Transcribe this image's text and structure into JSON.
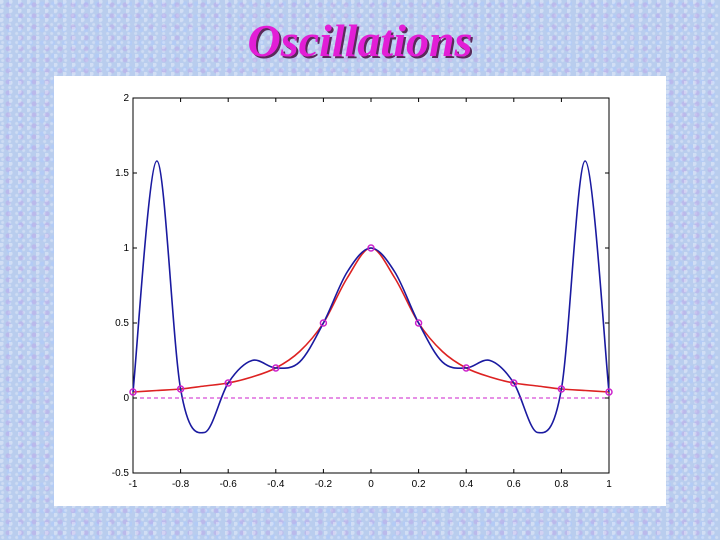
{
  "slide": {
    "title": "Oscillations"
  },
  "chart_data": {
    "type": "line",
    "title": "",
    "xlabel": "",
    "ylabel": "",
    "xlim": [
      -1,
      1
    ],
    "ylim": [
      -0.5,
      2
    ],
    "grid": false,
    "x_ticks": [
      -1,
      -0.8,
      -0.6,
      -0.4,
      -0.2,
      0,
      0.2,
      0.4,
      0.6,
      0.8,
      1
    ],
    "x_tick_labels": [
      "-1",
      "-0.8",
      "-0.6",
      "-0.4",
      "-0.2",
      "0",
      "0.2",
      "0.4",
      "0.6",
      "0.8",
      "1"
    ],
    "y_ticks": [
      -0.5,
      0,
      0.5,
      1,
      1.5,
      2
    ],
    "y_tick_labels": [
      "-0.5",
      "0",
      "0.5",
      "1",
      "1.5",
      "2"
    ],
    "series": [
      {
        "style": "solid",
        "color": "#dd2222",
        "x": [
          -1,
          -0.9,
          -0.8,
          -0.7,
          -0.6,
          -0.5,
          -0.4,
          -0.3,
          -0.2,
          -0.1,
          0,
          0.1,
          0.2,
          0.3,
          0.4,
          0.5,
          0.6,
          0.7,
          0.8,
          0.9,
          1
        ],
        "y": [
          0.04,
          0.05,
          0.06,
          0.08,
          0.1,
          0.14,
          0.2,
          0.31,
          0.5,
          0.8,
          1.0,
          0.8,
          0.5,
          0.31,
          0.2,
          0.14,
          0.1,
          0.08,
          0.06,
          0.05,
          0.04
        ]
      },
      {
        "style": "solid",
        "color": "#1a1aa0",
        "x": [
          -1,
          -0.9,
          -0.8,
          -0.7,
          -0.6,
          -0.5,
          -0.4,
          -0.3,
          -0.2,
          -0.1,
          0,
          0.1,
          0.2,
          0.3,
          0.4,
          0.5,
          0.6,
          0.7,
          0.8,
          0.9,
          1
        ],
        "y": [
          0.04,
          1.58,
          0.06,
          -0.23,
          0.1,
          0.25,
          0.2,
          0.24,
          0.5,
          0.84,
          1.0,
          0.84,
          0.5,
          0.24,
          0.2,
          0.25,
          0.1,
          -0.23,
          0.06,
          1.58,
          0.04
        ]
      },
      {
        "style": "markers",
        "color": "#cc22cc",
        "x": [
          -1,
          -0.8,
          -0.6,
          -0.4,
          -0.2,
          0,
          0.2,
          0.4,
          0.6,
          0.8,
          1
        ],
        "y": [
          0.04,
          0.06,
          0.1,
          0.2,
          0.5,
          1.0,
          0.5,
          0.2,
          0.1,
          0.06,
          0.04
        ]
      },
      {
        "style": "dashed",
        "color": "#cc22cc",
        "x": [
          -1,
          1
        ],
        "y": [
          0,
          0
        ]
      }
    ]
  }
}
